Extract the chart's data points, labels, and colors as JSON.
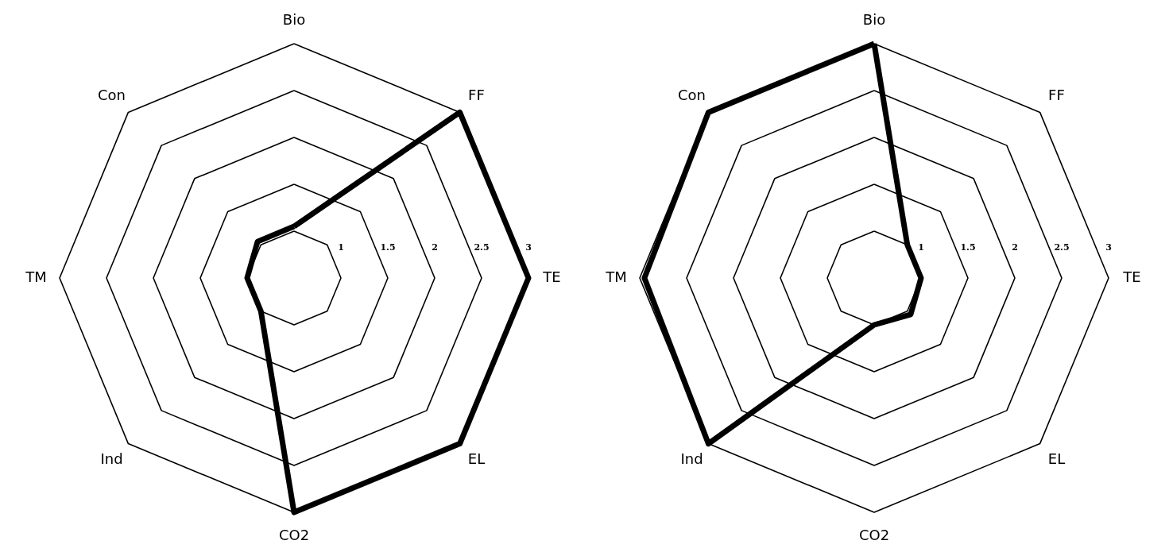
{
  "chart_data": [
    {
      "type": "radar",
      "categories": [
        "Bio",
        "FF",
        "TE",
        "EL",
        "CO2",
        "Ind",
        "TM",
        "Con"
      ],
      "ylim": [
        0.5,
        3
      ],
      "yticks": [
        1,
        1.5,
        2,
        2.5,
        3
      ],
      "grid": true,
      "series": [
        {
          "color": "#000000",
          "values": [
            1.05,
            3,
            3,
            3,
            3,
            1,
            1,
            1.05
          ]
        }
      ]
    },
    {
      "type": "radar",
      "categories": [
        "Bio",
        "FF",
        "TE",
        "EL",
        "CO2",
        "Ind",
        "TM",
        "Con"
      ],
      "ylim": [
        0.5,
        3
      ],
      "yticks": [
        1,
        1.5,
        2,
        2.5,
        3
      ],
      "grid": true,
      "series": [
        {
          "color": "#000000",
          "values": [
            3,
            1,
            1,
            1.05,
            1,
            3,
            2.95,
            3
          ]
        }
      ]
    }
  ]
}
